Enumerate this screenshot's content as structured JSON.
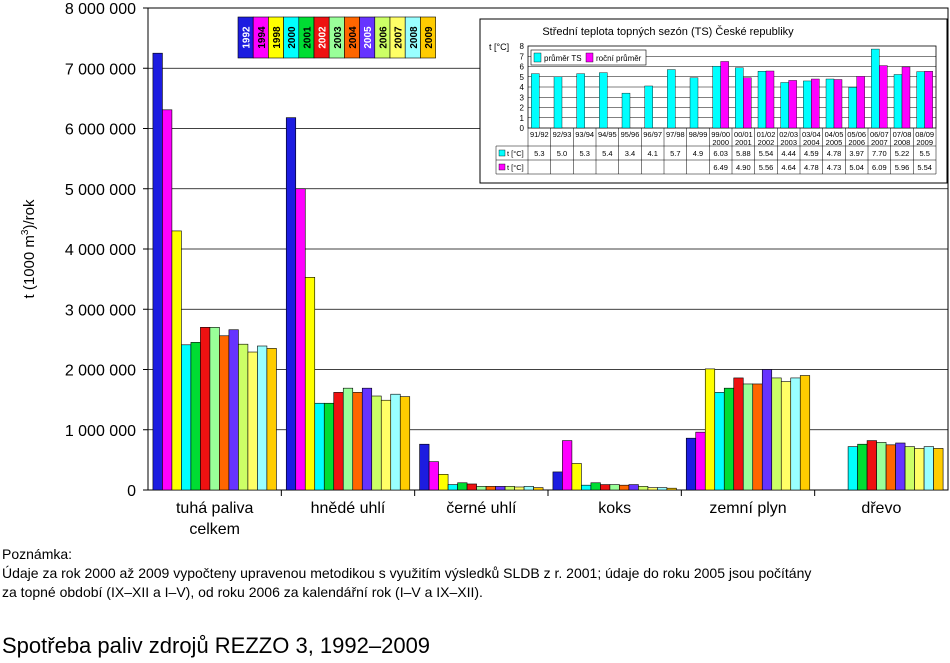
{
  "chart_data": [
    {
      "type": "bar",
      "ylabel_main": "t (1000 m",
      "ylabel_sup": "3",
      "ylabel_tail": ")/rok",
      "ylim": [
        0,
        8000000
      ],
      "yticks": [
        0,
        1000000,
        2000000,
        3000000,
        4000000,
        5000000,
        6000000,
        7000000,
        8000000
      ],
      "ytick_labels": [
        "0",
        "1 000 000",
        "2 000 000",
        "3 000 000",
        "4 000 000",
        "5 000 000",
        "6 000 000",
        "7 000 000",
        "8 000 000"
      ],
      "grid": true,
      "legend_position": "top-left",
      "categories": [
        {
          "line1": "tuhá paliva",
          "line2": "celkem"
        },
        {
          "line1": "hnědé uhlí",
          "line2": ""
        },
        {
          "line1": "černé uhlí",
          "line2": ""
        },
        {
          "line1": "koks",
          "line2": ""
        },
        {
          "line1": "zemní plyn",
          "line2": ""
        },
        {
          "line1": "dřevo",
          "line2": ""
        }
      ],
      "series": [
        {
          "name": "1992",
          "color": "#1c1ce0",
          "values": [
            7250000,
            6180000,
            760000,
            300000,
            860000,
            null
          ]
        },
        {
          "name": "1994",
          "color": "#ff00ff",
          "values": [
            6310000,
            5000000,
            470000,
            820000,
            960000,
            null
          ]
        },
        {
          "name": "1998",
          "color": "#ffff00",
          "values": [
            4300000,
            3530000,
            260000,
            440000,
            2010000,
            null
          ]
        },
        {
          "name": "2000",
          "color": "#00ffff",
          "values": [
            2410000,
            1440000,
            90000,
            80000,
            1620000,
            720000
          ]
        },
        {
          "name": "2001",
          "color": "#00dd33",
          "values": [
            2450000,
            1440000,
            120000,
            120000,
            1690000,
            760000
          ]
        },
        {
          "name": "2002",
          "color": "#ee1111",
          "values": [
            2700000,
            1620000,
            100000,
            90000,
            1860000,
            820000
          ]
        },
        {
          "name": "2003",
          "color": "#99ff99",
          "values": [
            2700000,
            1690000,
            60000,
            90000,
            1760000,
            790000
          ]
        },
        {
          "name": "2004",
          "color": "#ff6600",
          "values": [
            2560000,
            1620000,
            60000,
            80000,
            1760000,
            750000
          ]
        },
        {
          "name": "2005",
          "color": "#6633ff",
          "values": [
            2660000,
            1690000,
            60000,
            90000,
            2000000,
            780000
          ]
        },
        {
          "name": "2006",
          "color": "#ccff66",
          "values": [
            2420000,
            1560000,
            60000,
            60000,
            1860000,
            720000
          ]
        },
        {
          "name": "2007",
          "color": "#ffff66",
          "values": [
            2290000,
            1490000,
            50000,
            40000,
            1800000,
            690000
          ]
        },
        {
          "name": "2008",
          "color": "#99ffff",
          "values": [
            2390000,
            1590000,
            60000,
            40000,
            1860000,
            720000
          ]
        },
        {
          "name": "2009",
          "color": "#ffcc00",
          "values": [
            2350000,
            1550000,
            40000,
            30000,
            1900000,
            690000
          ]
        }
      ]
    },
    {
      "type": "bar",
      "title": "Střední teplota topných sezón (TS) České republiky",
      "ylabel": "t [°C]",
      "ylim": [
        0,
        8
      ],
      "yticks": [
        0,
        1,
        2,
        3,
        4,
        5,
        6,
        7,
        8
      ],
      "legend_position": "top-left",
      "row_label": "t [°C]",
      "categories": [
        {
          "line1": "91/92",
          "line2": ""
        },
        {
          "line1": "92/93",
          "line2": ""
        },
        {
          "line1": "93/94",
          "line2": ""
        },
        {
          "line1": "94/95",
          "line2": ""
        },
        {
          "line1": "95/96",
          "line2": ""
        },
        {
          "line1": "96/97",
          "line2": ""
        },
        {
          "line1": "97/98",
          "line2": ""
        },
        {
          "line1": "98/99",
          "line2": ""
        },
        {
          "line1": "99/00",
          "line2": "2000"
        },
        {
          "line1": "00/01",
          "line2": "2001"
        },
        {
          "line1": "01/02",
          "line2": "2002"
        },
        {
          "line1": "02/03",
          "line2": "2003"
        },
        {
          "line1": "03/04",
          "line2": "2004"
        },
        {
          "line1": "04/05",
          "line2": "2005"
        },
        {
          "line1": "05/06",
          "line2": "2006"
        },
        {
          "line1": "06/07",
          "line2": "2007"
        },
        {
          "line1": "07/08",
          "line2": "2008"
        },
        {
          "line1": "08/09",
          "line2": "2009"
        }
      ],
      "series": [
        {
          "name": "průměr TS",
          "color": "#00ffff",
          "values": [
            5.3,
            5.0,
            5.3,
            5.4,
            3.4,
            4.1,
            5.7,
            4.9,
            6.03,
            5.88,
            5.54,
            4.44,
            4.59,
            4.78,
            3.97,
            7.7,
            5.22,
            5.5
          ],
          "labels": [
            "5.3",
            "5.0",
            "5.3",
            "5.4",
            "3.4",
            "4.1",
            "5.7",
            "4.9",
            "6.03",
            "5.88",
            "5.54",
            "4.44",
            "4.59",
            "4.78",
            "3.97",
            "7.70",
            "5.22",
            "5.5"
          ]
        },
        {
          "name": "roční průměr",
          "color": "#ff00ff",
          "values": [
            null,
            null,
            null,
            null,
            null,
            null,
            null,
            null,
            6.49,
            4.9,
            5.56,
            4.64,
            4.78,
            4.73,
            5.04,
            6.09,
            5.96,
            5.54
          ],
          "labels": [
            "",
            "",
            "",
            "",
            "",
            "",
            "",
            "",
            "6.49",
            "4.90",
            "5.56",
            "4.64",
            "4.78",
            "4.73",
            "5.04",
            "6.09",
            "5.96",
            "5.54"
          ]
        }
      ]
    }
  ],
  "note": {
    "heading": "Poznámka:",
    "text_line1": "Údaje za rok 2000 až 2009 vypočteny upravenou metodikou s využitím výsledků SLDB z r. 2001; údaje do roku 2005 jsou počítány",
    "text_line2": "za topné období (IX–XII a I–V), od roku 2006 za kalendářní rok (I–V a IX–XII)."
  },
  "caption": "Spotřeba paliv zdrojů REZZO 3, 1992–2009"
}
